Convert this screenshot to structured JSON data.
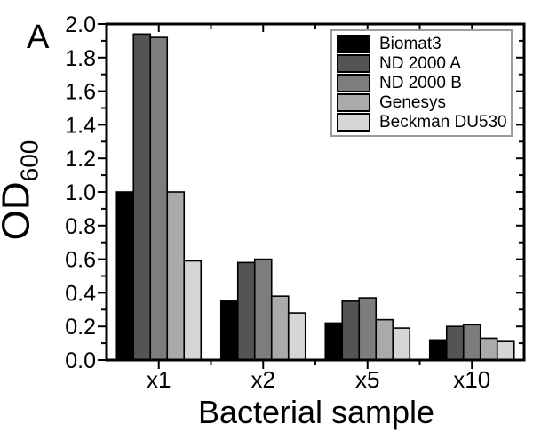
{
  "figure": {
    "panel_label": "A",
    "y_axis_label": {
      "text": "OD",
      "subscript": "600"
    },
    "x_axis_label": "Bacterial sample"
  },
  "chart_data": {
    "type": "bar",
    "title": "",
    "xlabel": "Bacterial sample",
    "ylabel": "OD600",
    "categories": [
      "x1",
      "x2",
      "x5",
      "x10"
    ],
    "series": [
      {
        "name": "Biomat3",
        "color": "#000000",
        "values": [
          1.0,
          0.35,
          0.22,
          0.12
        ]
      },
      {
        "name": "ND 2000 A",
        "color": "#545454",
        "values": [
          1.94,
          0.58,
          0.35,
          0.2
        ]
      },
      {
        "name": "ND 2000 B",
        "color": "#7d7d7d",
        "values": [
          1.92,
          0.6,
          0.37,
          0.21
        ]
      },
      {
        "name": "Genesys",
        "color": "#aaaaaa",
        "values": [
          1.0,
          0.38,
          0.24,
          0.13
        ]
      },
      {
        "name": "Beckman DU530",
        "color": "#d6d6d6",
        "values": [
          0.59,
          0.28,
          0.19,
          0.11
        ]
      }
    ],
    "ylim": [
      0,
      2.0
    ],
    "y_major_step": 0.2,
    "y_minor_step": 0.1,
    "y_tick_labels": [
      "0.0",
      "0.2",
      "0.4",
      "0.6",
      "0.8",
      "1.0",
      "1.2",
      "1.4",
      "1.6",
      "1.8",
      "2.0"
    ],
    "grid": false,
    "legend": {
      "position": "top-right",
      "entries": [
        "Biomat3",
        "ND 2000 A",
        "ND 2000 B",
        "Genesys",
        "Beckman DU530"
      ]
    },
    "axis_color": "#000000",
    "background_color": "#ffffff"
  }
}
